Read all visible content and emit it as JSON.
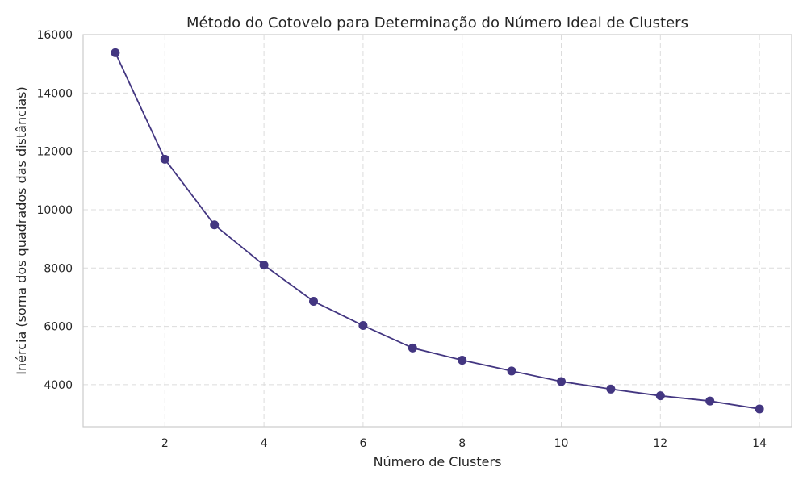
{
  "chart_data": {
    "type": "line",
    "title": "Método do Cotovelo para Determinação do Número Ideal de Clusters",
    "xlabel": "Número de Clusters",
    "ylabel": "Inércia (soma dos quadrados das distâncias)",
    "xlim": [
      0.35,
      14.65
    ],
    "ylim": [
      2560,
      16000
    ],
    "xticks": [
      2,
      4,
      6,
      8,
      10,
      12,
      14
    ],
    "yticks": [
      4000,
      6000,
      8000,
      10000,
      12000,
      14000,
      16000
    ],
    "grid": true,
    "marker": "circle",
    "color": "#433681",
    "series": [
      {
        "x": [
          1,
          2,
          3,
          4,
          5,
          6,
          7,
          8,
          9,
          10,
          11,
          12,
          13,
          14
        ],
        "values": [
          15380,
          11730,
          9480,
          8100,
          6860,
          6030,
          5260,
          4840,
          4470,
          4110,
          3850,
          3620,
          3440,
          3170
        ]
      }
    ]
  }
}
